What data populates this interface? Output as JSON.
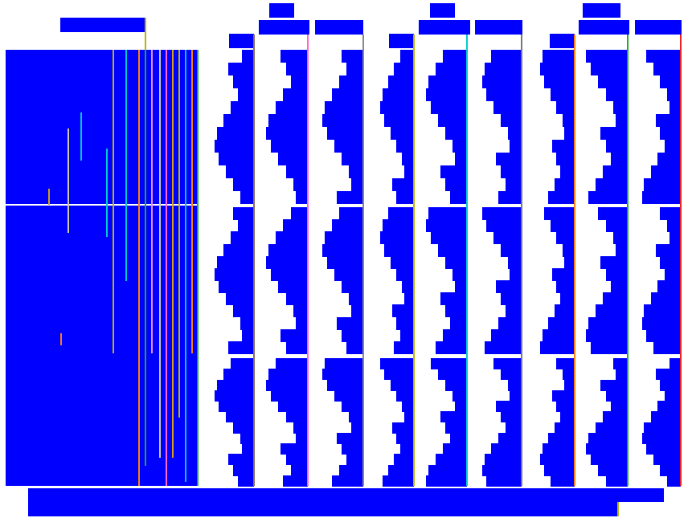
{
  "colors": {
    "fill": "#0000ff",
    "background": "#ffffff",
    "column_lines": [
      "#8b6b5a",
      "#ff66cc",
      "#888888",
      "#b8b800",
      "#00cccc",
      "#777777",
      "#ff7f0e",
      "#22aa22",
      "#ee2222"
    ],
    "left_block_lines": [
      "#b8b800",
      "#00cccc",
      "#ff7f0e",
      "#22aa22",
      "#ee88ee",
      "#ccccaa",
      "#ff66cc",
      "#d4a017"
    ]
  }
}
